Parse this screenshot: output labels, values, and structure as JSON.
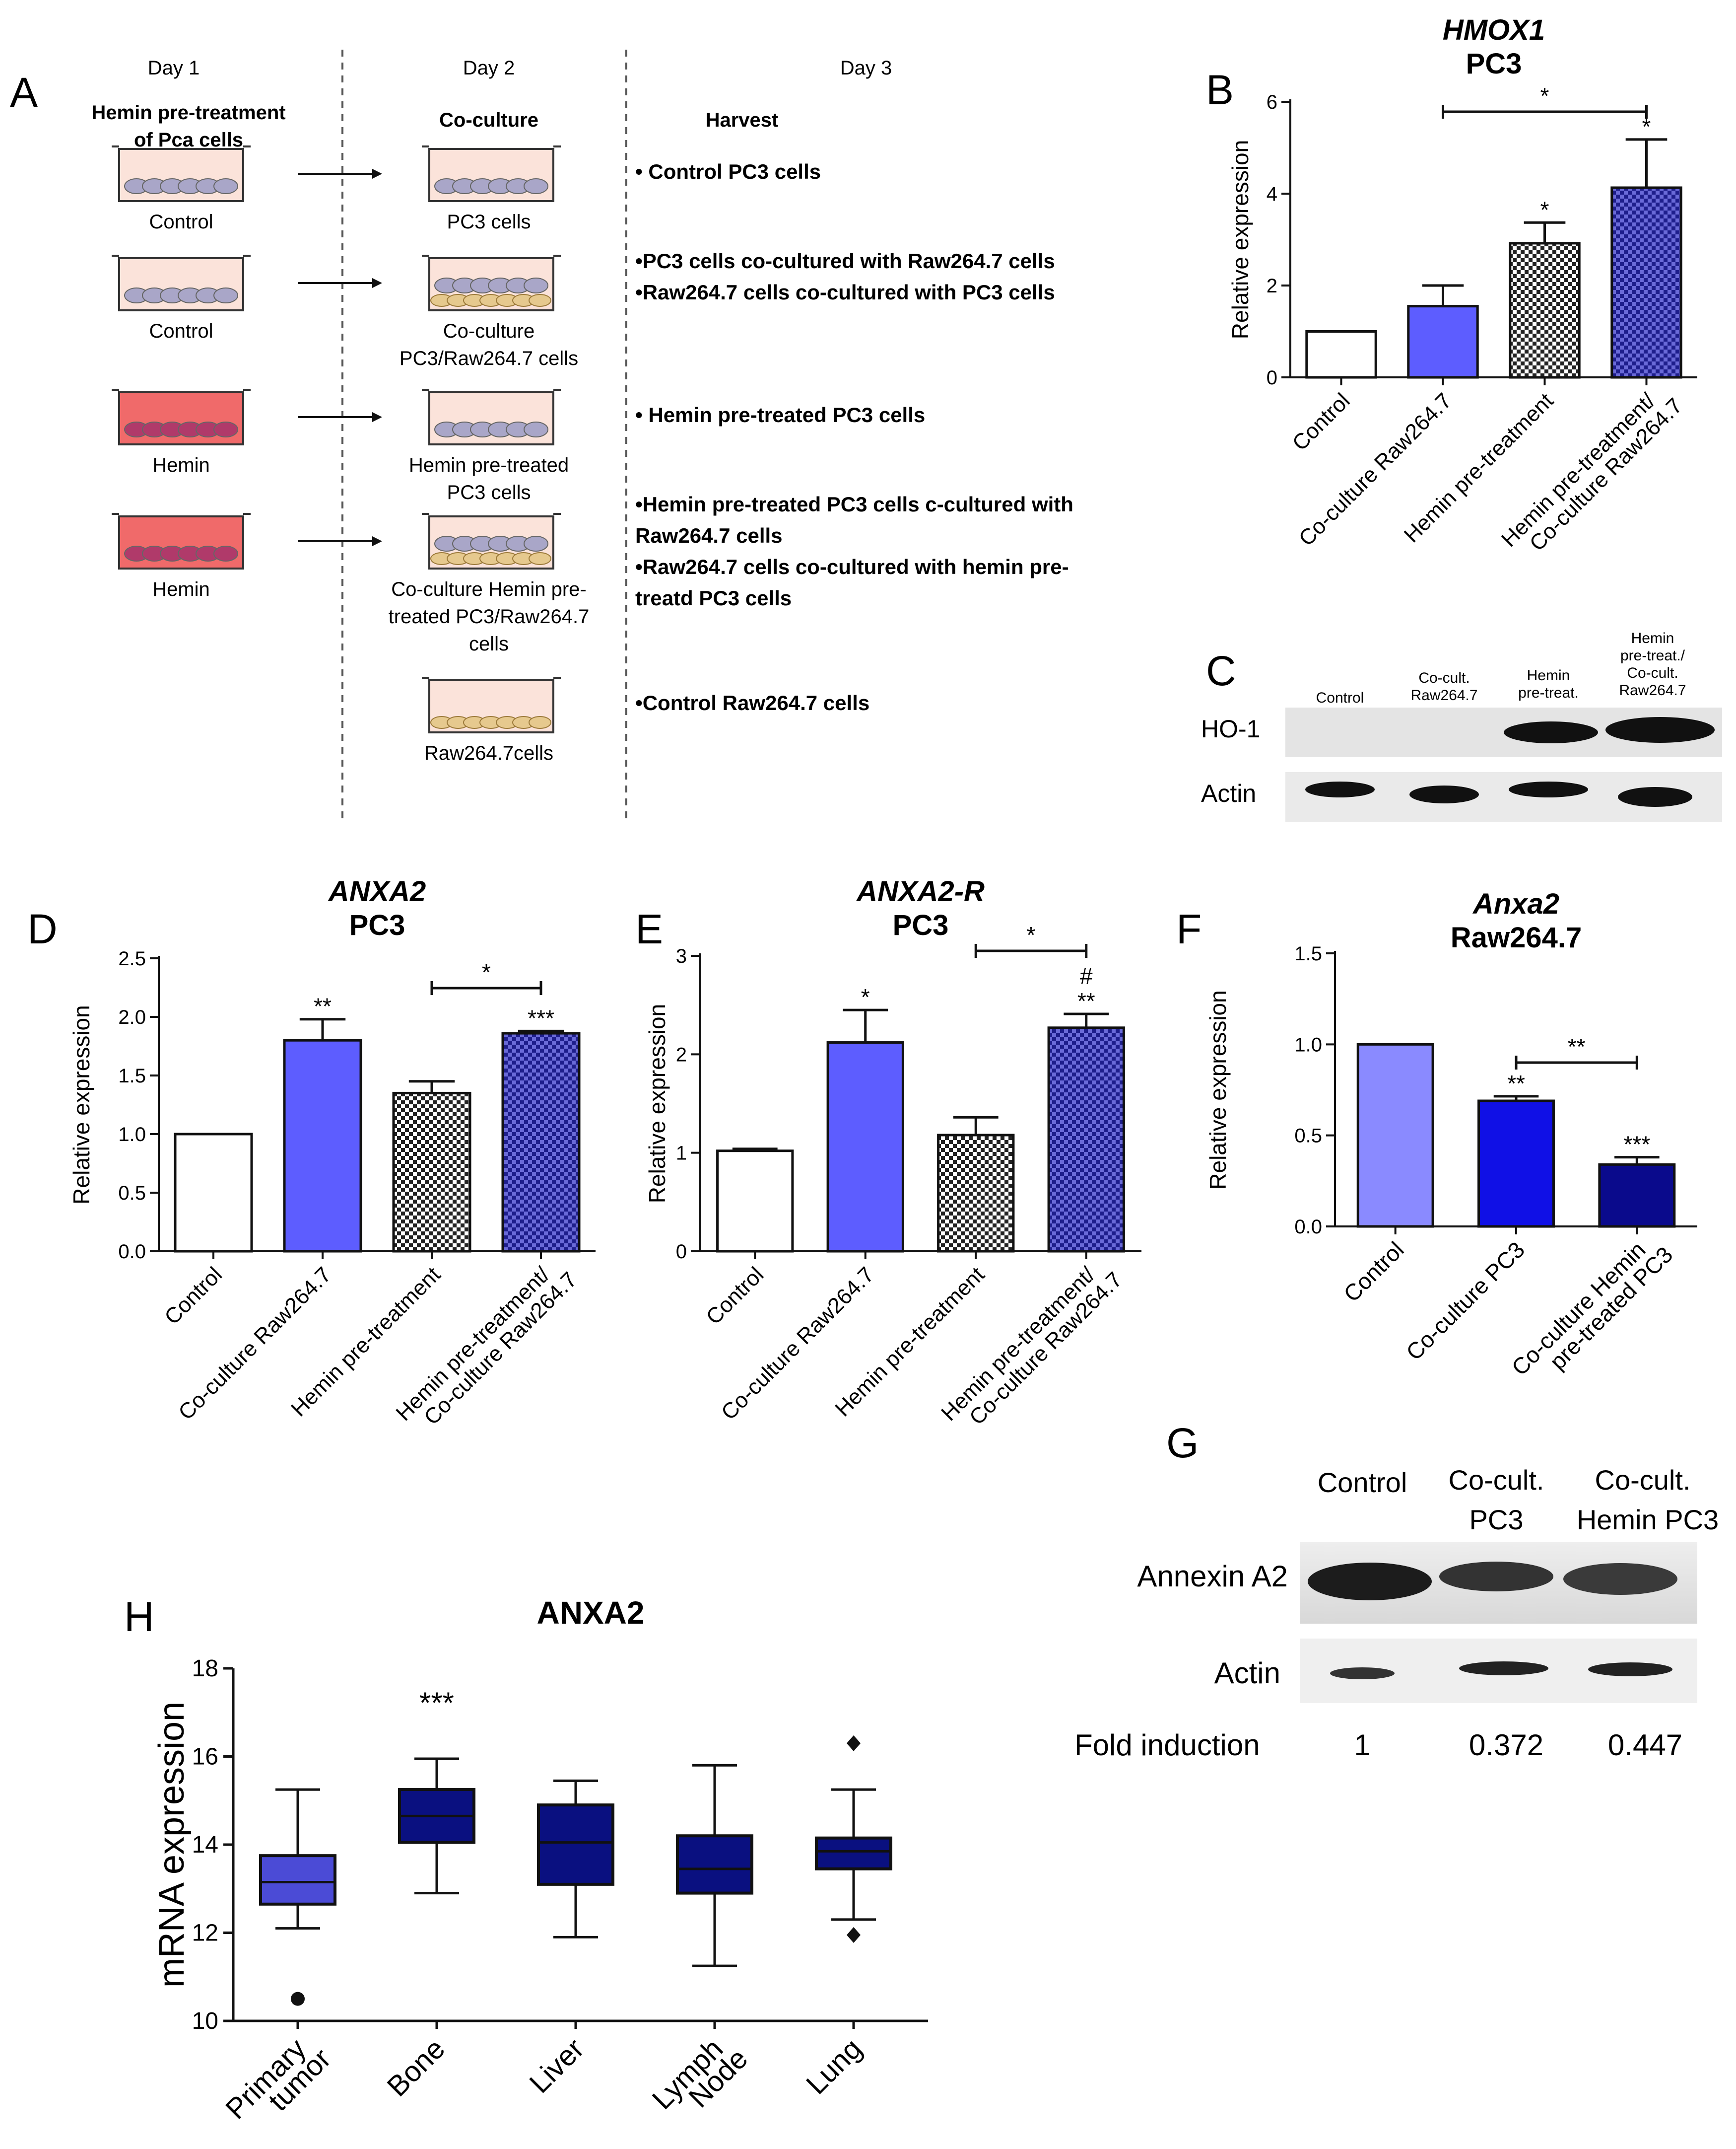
{
  "panelA": {
    "letter": "A",
    "days": [
      "Day 1",
      "Day 2",
      "Day 3"
    ],
    "headers": [
      "Hemin pre-treatment of Pca cells",
      "Co-culture",
      "Harvest"
    ],
    "rows": [
      {
        "left": "Control",
        "mid": [
          "PC3 cells"
        ],
        "right": [
          "• Control PC3 cells"
        ],
        "left_red": false,
        "mid_raw": false
      },
      {
        "left": "Control",
        "mid": [
          "Co-culture",
          "PC3/Raw264.7 cells"
        ],
        "right": [
          "•PC3 cells co-cultured with Raw264.7 cells",
          "•Raw264.7 cells co-cultured  with PC3 cells"
        ],
        "left_red": false,
        "mid_raw": true
      },
      {
        "left": "Hemin",
        "mid": [
          "Hemin pre-treated",
          "PC3 cells"
        ],
        "right": [
          "• Hemin pre-treated PC3 cells"
        ],
        "left_red": true,
        "mid_raw": false
      },
      {
        "left": "Hemin",
        "mid": [
          "Co-culture Hemin pre-",
          "treated PC3/Raw264.7",
          "cells"
        ],
        "right": [
          "•Hemin pre-treated PC3 cells c-cultured with",
          "  Raw264.7 cells",
          "•Raw264.7 cells co-cultured with hemin pre-",
          "  treatd PC3 cells"
        ],
        "left_red": true,
        "mid_raw": true
      },
      {
        "left": "",
        "mid": [
          "Raw264.7cells"
        ],
        "right": [
          "•Control Raw264.7 cells"
        ],
        "left_red": false,
        "mid_raw": true,
        "raw_only": true
      }
    ]
  },
  "chart_data": [
    {
      "panel": "B",
      "type": "bar",
      "title": "HMOX1",
      "subtitle": "PC3",
      "ylabel": "Relative expression",
      "ylim": [
        0,
        6
      ],
      "yticks": [
        0,
        2,
        4,
        6
      ],
      "categories": [
        "Control",
        "Co-culture Raw264.7",
        "Hemin pre-treatment",
        "Hemin pre-treatment/ Co-culture Raw264.7"
      ],
      "values": [
        1.0,
        1.55,
        2.92,
        4.13
      ],
      "errors": [
        0,
        0.45,
        0.45,
        1.05
      ],
      "annotations": [
        "",
        "",
        "*",
        "*"
      ],
      "brackets": [
        {
          "from": 1,
          "to": 3,
          "label": "*"
        }
      ]
    },
    {
      "panel": "D",
      "type": "bar",
      "title": "ANXA2",
      "subtitle": "PC3",
      "ylabel": "Relative expression",
      "ylim": [
        0,
        2.5
      ],
      "yticks": [
        0.0,
        0.5,
        1.0,
        1.5,
        2.0,
        2.5
      ],
      "categories": [
        "Control",
        "Co-culture Raw264.7",
        "Hemin pre-treatment",
        "Hemin pre-treatment/ Co-culture Raw264.7"
      ],
      "values": [
        1.0,
        1.8,
        1.35,
        1.86
      ],
      "errors": [
        0,
        0.18,
        0.1,
        0.02
      ],
      "annotations": [
        "",
        "**",
        "",
        "***"
      ],
      "brackets": [
        {
          "from": 2,
          "to": 3,
          "label": "*"
        }
      ]
    },
    {
      "panel": "E",
      "type": "bar",
      "title": "ANXA2-R",
      "subtitle": "PC3",
      "ylabel": "Relative expression",
      "ylim": [
        0,
        3
      ],
      "yticks": [
        0,
        1,
        2,
        3
      ],
      "categories": [
        "Control",
        "Co-culture Raw264.7",
        "Hemin pre-treatment",
        "Hemin pre-treatment/ Co-culture Raw264.7"
      ],
      "values": [
        1.02,
        2.12,
        1.18,
        2.27
      ],
      "errors": [
        0.02,
        0.33,
        0.18,
        0.14
      ],
      "annotations": [
        "",
        "*",
        "",
        "#\n**"
      ],
      "brackets": [
        {
          "from": 2,
          "to": 3,
          "label": "*"
        }
      ]
    },
    {
      "panel": "F",
      "type": "bar",
      "title": "Anxa2",
      "subtitle": "Raw264.7",
      "ylabel": "Relative expression",
      "ylim": [
        0,
        1.5
      ],
      "yticks": [
        0.0,
        0.5,
        1.0,
        1.5
      ],
      "categories": [
        "Control",
        "Co-culture PC3",
        "Co-culture Hemin pre-treated PC3"
      ],
      "values": [
        1.0,
        0.69,
        0.34
      ],
      "errors": [
        0,
        0.025,
        0.04
      ],
      "annotations": [
        "",
        "**",
        "***"
      ],
      "brackets": [
        {
          "from": 1,
          "to": 2,
          "label": "**"
        }
      ]
    },
    {
      "panel": "H",
      "type": "box",
      "title": "ANXA2",
      "ylabel": "mRNA expression",
      "ylim": [
        10,
        18
      ],
      "yticks": [
        10,
        12,
        14,
        16,
        18
      ],
      "categories": [
        "Primary tumor",
        "Bone",
        "Liver",
        "Lymph Node",
        "Lung"
      ],
      "boxes": [
        {
          "min": 12.1,
          "q1": 12.65,
          "median": 13.15,
          "q3": 13.75,
          "max": 15.25,
          "outliers": [
            10.5
          ]
        },
        {
          "min": 12.9,
          "q1": 14.05,
          "median": 14.65,
          "q3": 15.25,
          "max": 15.95,
          "outliers": []
        },
        {
          "min": 11.9,
          "q1": 13.1,
          "median": 14.05,
          "q3": 14.9,
          "max": 15.45,
          "outliers": []
        },
        {
          "min": 11.25,
          "q1": 12.9,
          "median": 13.45,
          "q3": 14.2,
          "max": 15.8,
          "outliers": []
        },
        {
          "min": 12.3,
          "q1": 13.45,
          "median": 13.85,
          "q3": 14.15,
          "max": 15.25,
          "outliers": [
            16.3,
            11.95
          ]
        }
      ],
      "annotations": [
        "",
        "***",
        "",
        "",
        ""
      ]
    }
  ],
  "blotC": {
    "letter": "C",
    "lanes": [
      [
        "Control"
      ],
      [
        "Co-cult.",
        "Raw264.7"
      ],
      [
        "Hemin",
        "pre-treat."
      ],
      [
        "Hemin",
        "pre-treat./",
        "Co-cult.",
        "Raw264.7"
      ]
    ],
    "rows": [
      "HO-1",
      "Actin"
    ]
  },
  "blotG": {
    "letter": "G",
    "lanes": [
      [
        "Control"
      ],
      [
        "Co-cult.",
        "PC3"
      ],
      [
        "Co-cult.",
        "Hemin  PC3"
      ]
    ],
    "rows": [
      "Annexin A2",
      "Actin"
    ],
    "fold_label": "Fold induction",
    "fold_values": [
      "1",
      "0.372",
      "0.447"
    ]
  },
  "colors": {
    "control": "#ffffff",
    "coculture": "#5d5dff",
    "hemin_check": "#222222",
    "combo_check": "#1e1e8c",
    "F_control": "#8a8aff",
    "F_coculture": "#1010e6",
    "F_hemin": "#0a0a8c",
    "box_primary": "#4b4bd6",
    "box_other": "#0a1080",
    "red_dish": "#f06a6a",
    "dish_fill": "#fbe3da",
    "cells_purple": "#a9a6c8",
    "cells_tan": "#e6c98e"
  }
}
